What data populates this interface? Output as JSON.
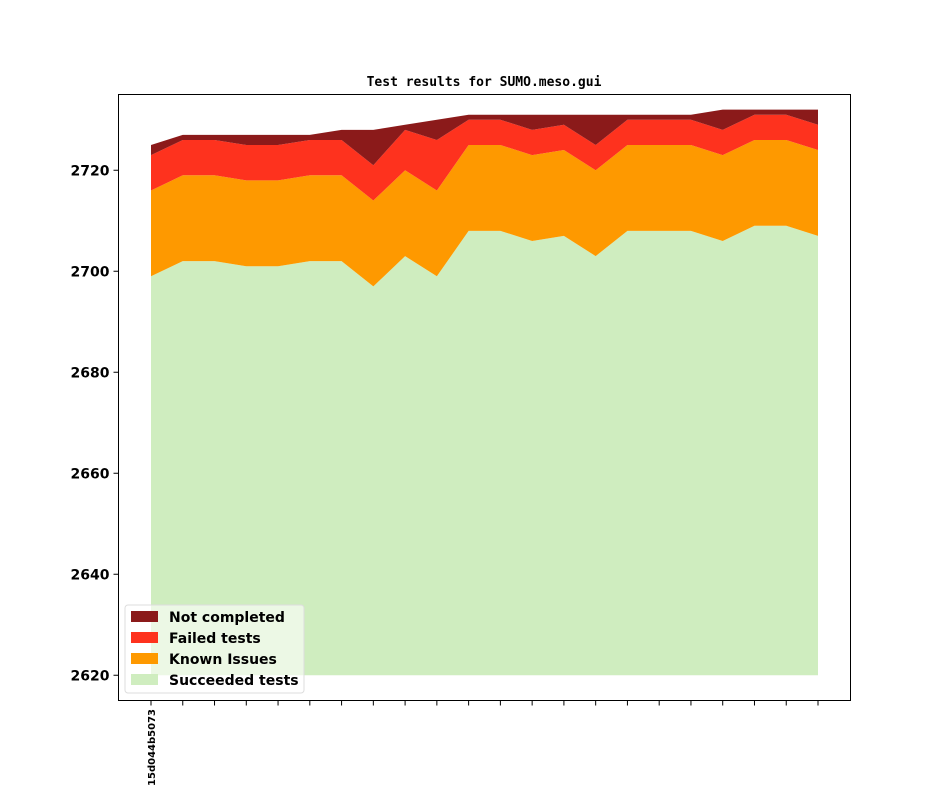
{
  "chart_data": {
    "type": "area",
    "stacked": true,
    "title": "Test results for SUMO.meso.gui",
    "xlabel": "",
    "ylabel": "",
    "ylim": [
      2615,
      2735
    ],
    "yticks": [
      2620,
      2640,
      2660,
      2680,
      2700,
      2720
    ],
    "x_tick_count": 22,
    "x_tick_labels": [
      "15d044b5073",
      "",
      "",
      "",
      "",
      "",
      "",
      "",
      "",
      "",
      "",
      "",
      "",
      "",
      "",
      "",
      "",
      "",
      "",
      "",
      "",
      ""
    ],
    "baseline": 2620,
    "grid": false,
    "legend_position": "lower-left",
    "series": [
      {
        "name": "Succeeded tests",
        "color": "#cfedbf",
        "values": [
          2699,
          2702,
          2702,
          2701,
          2701,
          2702,
          2702,
          2697,
          2703,
          2699,
          2708,
          2708,
          2706,
          2707,
          2703,
          2708,
          2708,
          2708,
          2706,
          2709,
          2709,
          2707
        ]
      },
      {
        "name": "Known Issues",
        "color": "#fe9900",
        "values": [
          2716,
          2719,
          2719,
          2718,
          2718,
          2719,
          2719,
          2714,
          2720,
          2716,
          2725,
          2725,
          2723,
          2724,
          2720,
          2725,
          2725,
          2725,
          2723,
          2726,
          2726,
          2724
        ]
      },
      {
        "name": "Failed tests",
        "color": "#fe321e",
        "values": [
          2723,
          2726,
          2726,
          2725,
          2725,
          2726,
          2726,
          2721,
          2728,
          2726,
          2730,
          2730,
          2728,
          2729,
          2725,
          2730,
          2730,
          2730,
          2728,
          2731,
          2731,
          2729
        ]
      },
      {
        "name": "Not completed",
        "color": "#8b1a1a",
        "values": [
          2725,
          2727,
          2727,
          2727,
          2727,
          2727,
          2728,
          2728,
          2729,
          2730,
          2731,
          2731,
          2731,
          2731,
          2731,
          2731,
          2731,
          2731,
          2732,
          2732,
          2732,
          2732
        ]
      }
    ],
    "legend_order": [
      "Not completed",
      "Failed tests",
      "Known Issues",
      "Succeeded tests"
    ]
  }
}
